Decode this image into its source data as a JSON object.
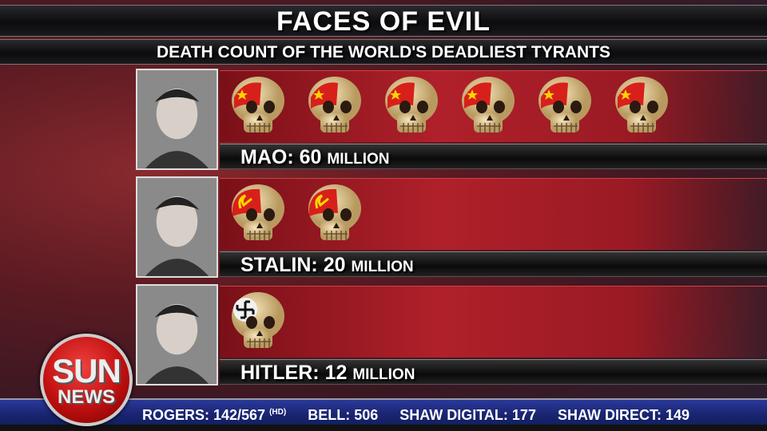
{
  "header": {
    "title": "FACES OF EVIL",
    "subtitle": "DEATH COUNT OF THE WORLD'S DEADLIEST TYRANTS"
  },
  "chart_data": {
    "type": "bar",
    "title": "FACES OF EVIL",
    "subtitle": "DEATH COUNT OF THE WORLD'S DEADLIEST TYRANTS",
    "categories": [
      "MAO",
      "STALIN",
      "HITLER"
    ],
    "values": [
      60,
      20,
      12
    ],
    "unit": "MILLION",
    "rows": [
      {
        "name": "MAO",
        "value": "60",
        "unit": "MILLION",
        "skulls": 6,
        "emblem": "china-flag"
      },
      {
        "name": "STALIN",
        "value": "20",
        "unit": "MILLION",
        "skulls": 2,
        "emblem": "hammer-sickle"
      },
      {
        "name": "HITLER",
        "value": "12",
        "unit": "MILLION",
        "skulls": 1,
        "emblem": "swastika"
      }
    ]
  },
  "ticker": {
    "rogers": "ROGERS: 142/567",
    "rogers_hd": "(HD)",
    "bell": "BELL: 506",
    "shaw_digital": "SHAW DIGITAL: 177",
    "shaw_direct": "SHAW DIRECT: 149"
  },
  "logo": {
    "line1": "SUN",
    "line2": "NEWS"
  },
  "colors": {
    "accent_red": "#b0202a",
    "ticker_blue": "#1a2470",
    "skull": "#e8d3a0"
  }
}
